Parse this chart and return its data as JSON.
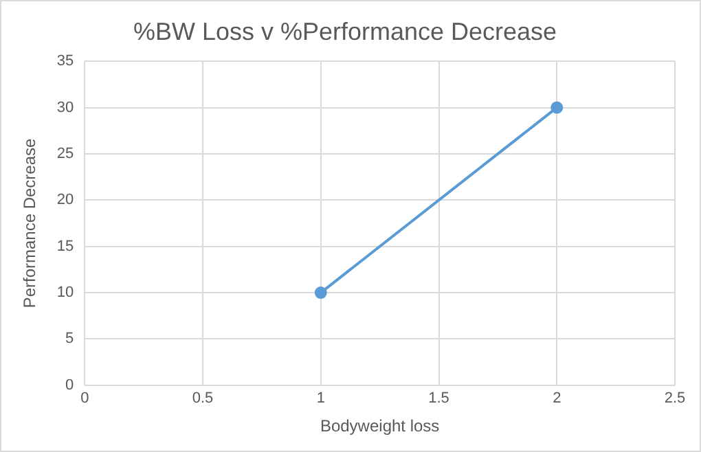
{
  "chart_data": {
    "type": "line",
    "title": "%BW Loss v %Performance Decrease",
    "xlabel": "Bodyweight loss",
    "ylabel": "Performance Decrease",
    "x": [
      1,
      2
    ],
    "series": [
      {
        "color": "#5b9bd5",
        "values": [
          10,
          30
        ]
      }
    ],
    "xlim": [
      0,
      2.5
    ],
    "xticks": [
      0,
      0.5,
      1,
      1.5,
      2,
      2.5
    ],
    "ylim": [
      0,
      35
    ],
    "yticks": [
      0,
      5,
      10,
      15,
      20,
      25,
      30,
      35
    ],
    "grid": true,
    "marker": "circle",
    "line_style": "solid",
    "legend": false
  }
}
